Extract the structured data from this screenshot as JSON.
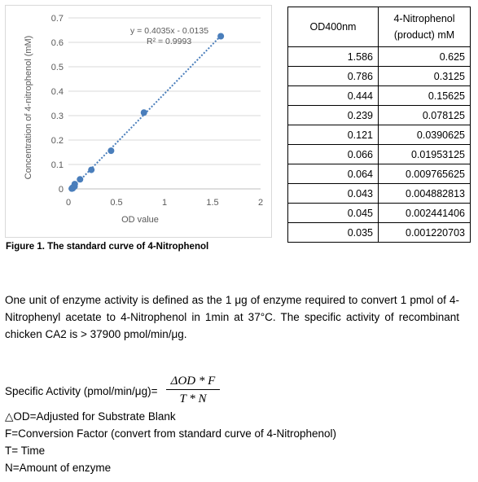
{
  "chart_data": {
    "type": "scatter",
    "title": "",
    "xlabel": "OD value",
    "ylabel": "Concentration of 4-nitrophenol (mM)",
    "xlim": [
      0,
      2
    ],
    "ylim": [
      0,
      0.7
    ],
    "xticks": [
      "0",
      "0.5",
      "1",
      "1.5",
      "2"
    ],
    "yticks": [
      "0",
      "0.1",
      "0.2",
      "0.3",
      "0.4",
      "0.5",
      "0.6",
      "0.7"
    ],
    "grid": "horizontal",
    "marker_color": "#4a7ebb",
    "trendline": {
      "slope": 0.4035,
      "intercept": -0.0135,
      "style": "dotted",
      "color": "#4a7ebb"
    },
    "annotations": [
      "y = 0.4035x - 0.0135",
      "R² = 0.9993"
    ],
    "x": [
      1.586,
      0.786,
      0.444,
      0.239,
      0.121,
      0.066,
      0.064,
      0.043,
      0.045,
      0.035
    ],
    "y": [
      0.625,
      0.3125,
      0.15625,
      0.078125,
      0.0390625,
      0.01953125,
      0.009765625,
      0.004882813,
      0.002441406,
      0.001220703
    ]
  },
  "figure_caption": "Figure 1. The standard curve of 4-Nitrophenol",
  "table": {
    "headers": [
      "OD400nm",
      "4-Nitrophenol (product) mM"
    ],
    "rows": [
      [
        "1.586",
        "0.625"
      ],
      [
        "0.786",
        "0.3125"
      ],
      [
        "0.444",
        "0.15625"
      ],
      [
        "0.239",
        "0.078125"
      ],
      [
        "0.121",
        "0.0390625"
      ],
      [
        "0.066",
        "0.01953125"
      ],
      [
        "0.064",
        "0.009765625"
      ],
      [
        "0.043",
        "0.004882813"
      ],
      [
        "0.045",
        "0.002441406"
      ],
      [
        "0.035",
        "0.001220703"
      ]
    ]
  },
  "paragraph": "One unit of enzyme activity is defined as the 1 μg of enzyme required to convert 1 pmol of 4-Nitrophenyl acetate to 4-Nitrophenol in 1min at 37°C. The specific activity of recombinant chicken CA2 is > 37900 pmol/min/μg.",
  "formula": {
    "lhs": "Specific Activity (pmol/min/μg)=",
    "numerator": "ΔOD * F",
    "denominator": "T * N"
  },
  "definitions": [
    "△OD=Adjusted for Substrate Blank",
    "F=Conversion Factor (convert from standard curve of 4-Nitrophenol)",
    "T= Time",
    "N=Amount of enzyme"
  ]
}
